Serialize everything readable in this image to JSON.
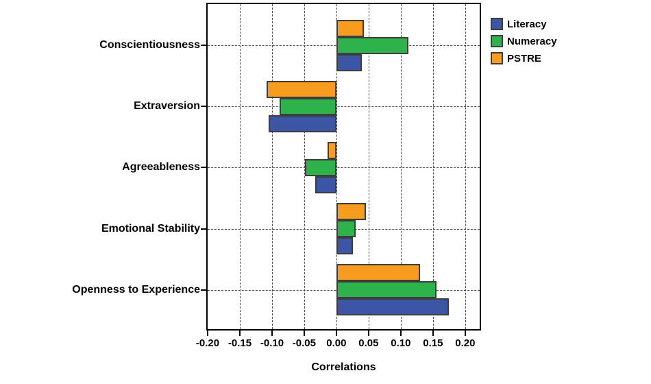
{
  "chart_data": {
    "type": "bar",
    "orientation": "horizontal",
    "title": "",
    "xlabel": "Correlations",
    "categories": [
      "Conscientiousness",
      "Extraversion",
      "Agreeableness",
      "Emotional Stability",
      "Openness to Experience"
    ],
    "series": [
      {
        "name": "Literacy",
        "color": "#3C55A5",
        "values": [
          0.04,
          -0.105,
          -0.033,
          0.026,
          0.175
        ]
      },
      {
        "name": "Numeracy",
        "color": "#2EB34C",
        "values": [
          0.112,
          -0.088,
          -0.049,
          0.03,
          0.156
        ]
      },
      {
        "name": "PSTRE",
        "color": "#F79C1E",
        "values": [
          0.043,
          -0.109,
          -0.014,
          0.046,
          0.13
        ]
      }
    ],
    "group_order_top_to_bottom": [
      "PSTRE",
      "Numeracy",
      "Literacy"
    ],
    "xlim": [
      -0.2,
      0.2225
    ],
    "xticks": [
      -0.2,
      -0.15,
      -0.1,
      -0.05,
      0.0,
      0.05,
      0.1,
      0.15,
      0.2
    ],
    "xtick_labels": [
      "-0.20",
      "-0.15",
      "-0.10",
      "-0.05",
      "0.00",
      "0.05",
      "0.10",
      "0.15",
      "0.20"
    ],
    "grid": true,
    "legend_position": "top-right-outside"
  },
  "styles": {
    "bar_border": "#3D3D3D",
    "grid_color": "#4A4A4A",
    "frame_color": "#000000",
    "background": "#FFFFFF",
    "text_color": "#000000"
  }
}
